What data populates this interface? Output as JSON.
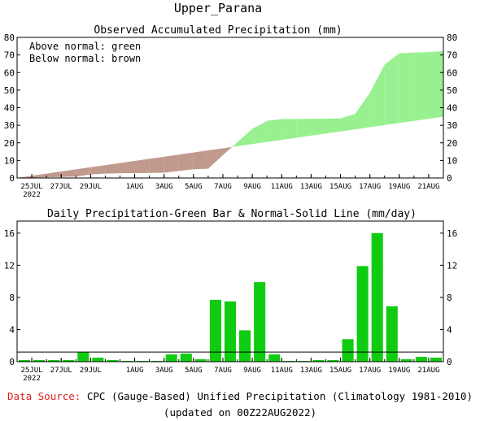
{
  "title": "Upper_Parana",
  "legend_note": {
    "line1": "Above normal: green",
    "line2": "Below normal: brown"
  },
  "footer": {
    "source_label": "Data Source:",
    "source_text": "CPC (Gauge-Based) Unified Precipitation (Climatology 1981-2010)",
    "updated": "(updated on 00Z22AUG2022)"
  },
  "colors": {
    "above": "#98f090",
    "below": "#c09a8c",
    "bar": "#10cc10",
    "normal": "#000000",
    "source_label": "#e02020"
  },
  "x_ticks": [
    {
      "label": "25JUL",
      "sub": "2022",
      "day": 0
    },
    {
      "label": "27JUL",
      "day": 2
    },
    {
      "label": "29JUL",
      "day": 4
    },
    {
      "label": "1AUG",
      "day": 7
    },
    {
      "label": "3AUG",
      "day": 9
    },
    {
      "label": "5AUG",
      "day": 11
    },
    {
      "label": "7AUG",
      "day": 13
    },
    {
      "label": "9AUG",
      "day": 15
    },
    {
      "label": "11AUG",
      "day": 17
    },
    {
      "label": "13AUG",
      "day": 19
    },
    {
      "label": "15AUG",
      "day": 21
    },
    {
      "label": "17AUG",
      "day": 23
    },
    {
      "label": "19AUG",
      "day": 25
    },
    {
      "label": "21AUG",
      "day": 27
    }
  ],
  "chart_data": [
    {
      "type": "area",
      "title": "Observed Accumulated Precipitation (mm)",
      "ylim": [
        0,
        80
      ],
      "yticks": [
        0,
        10,
        20,
        30,
        40,
        50,
        60,
        70,
        80
      ],
      "x_days": [
        -1,
        0,
        1,
        2,
        3,
        4,
        5,
        6,
        7,
        8,
        9,
        10,
        11,
        12,
        13,
        14,
        15,
        16,
        17,
        18,
        19,
        20,
        21,
        22,
        23,
        24,
        25,
        26,
        27,
        28
      ],
      "series": [
        {
          "name": "Observed",
          "values": [
            0,
            0.2,
            0.4,
            0.6,
            0.8,
            2,
            2.5,
            2.7,
            2.8,
            2.9,
            3,
            4,
            5,
            5.3,
            13,
            20.5,
            28,
            32.5,
            33.5,
            33.6,
            33.7,
            33.8,
            33.9,
            36.5,
            48.5,
            64.5,
            71,
            71.3,
            71.6,
            72.2
          ]
        },
        {
          "name": "Normal",
          "values": [
            0,
            1.3,
            2.5,
            3.7,
            4.9,
            6.1,
            7.3,
            8.5,
            9.7,
            10.9,
            12.1,
            13.3,
            14.5,
            15.7,
            16.9,
            18.1,
            19.3,
            20.5,
            21.7,
            22.9,
            24.1,
            25.3,
            26.5,
            27.7,
            28.9,
            30.1,
            31.3,
            32.5,
            33.7,
            34.9
          ]
        }
      ]
    },
    {
      "type": "bar",
      "title": "Daily Precipitation-Green Bar & Normal-Solid Line (mm/day)",
      "ylim": [
        0,
        17.5
      ],
      "yticks": [
        0,
        4,
        8,
        12,
        16
      ],
      "x_days": [
        -1,
        0,
        1,
        2,
        3,
        4,
        5,
        6,
        7,
        8,
        9,
        10,
        11,
        12,
        13,
        14,
        15,
        16,
        17,
        18,
        19,
        20,
        21,
        22,
        23,
        24,
        25,
        26,
        27,
        28
      ],
      "values": [
        0.2,
        0.2,
        0.2,
        0.2,
        1.2,
        0.5,
        0.2,
        0.1,
        0.1,
        0.1,
        0.9,
        1.0,
        0.3,
        7.7,
        7.5,
        3.9,
        9.9,
        0.9,
        0.1,
        0.1,
        0.2,
        0.2,
        2.8,
        11.9,
        16.0,
        6.9,
        0.3,
        0.6,
        0.5,
        0
      ],
      "normal": 1.2
    }
  ]
}
